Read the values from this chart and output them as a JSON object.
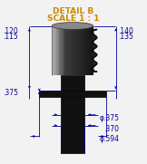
{
  "title_line1": "DETAIL B",
  "title_line2": "SCALE 1 : 1",
  "title_color": "#CC8800",
  "dim_color": "#000099",
  "line_color": "#000000",
  "bg_color": "#F2F2F2",
  "labels": {
    "top_left_1": ".120",
    "top_left_2": ".115",
    "top_right_1": ".140",
    "top_right_2": ".135",
    "mid_left": ".375",
    "bot_right_1": "φ.375",
    "bot_right_2": ".370",
    "bot_right_3": "φ.594"
  },
  "figsize": [
    1.62,
    1.81
  ],
  "dpi": 100
}
